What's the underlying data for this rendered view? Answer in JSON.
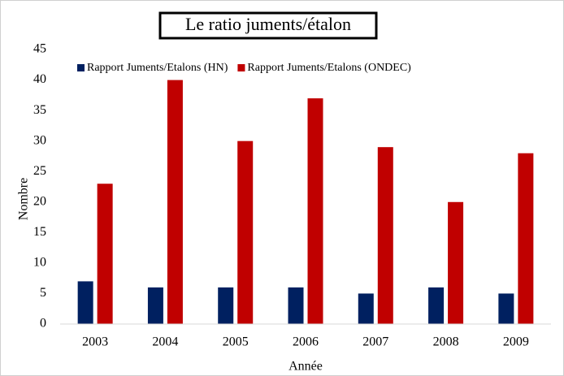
{
  "chart_data": {
    "type": "bar",
    "title": "Le ratio juments/étalon",
    "xlabel": "Année",
    "ylabel": "Nombre",
    "categories": [
      "2003",
      "2004",
      "2005",
      "2006",
      "2007",
      "2008",
      "2009"
    ],
    "series": [
      {
        "name": "Rapport Juments/Etalons (HN)",
        "color": "#002060",
        "values": [
          7,
          6,
          6,
          6,
          5,
          6,
          5
        ]
      },
      {
        "name": "Rapport Juments/Etalons (ONDEC)",
        "color": "#c00000",
        "values": [
          23,
          40,
          30,
          37,
          29,
          20,
          28
        ]
      }
    ],
    "ylim": [
      0,
      45
    ],
    "yticks": [
      0,
      5,
      10,
      15,
      20,
      25,
      30,
      35,
      40,
      45
    ],
    "grid": false,
    "legend": "top"
  }
}
